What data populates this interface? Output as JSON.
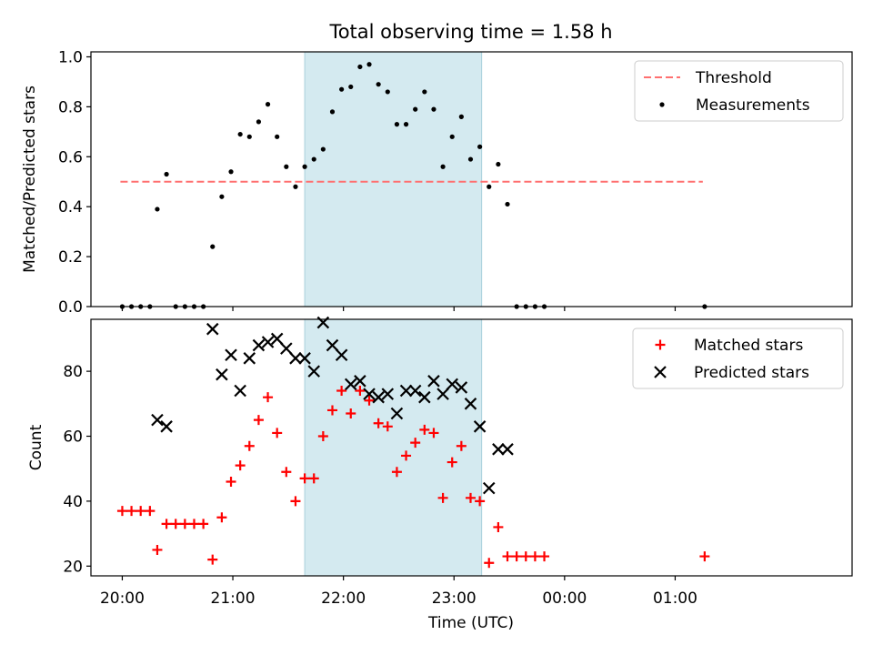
{
  "chart_data": {
    "type": "scatter",
    "title": "Total observing time = 1.58 h",
    "xlabel": "Time (UTC)",
    "x_tick_labels": [
      "20:00",
      "21:00",
      "22:00",
      "23:00",
      "00:00",
      "01:00"
    ],
    "observing_window": [
      "21:39",
      "23:15"
    ],
    "colors": {
      "window": "#d4eaf0",
      "threshold": "#ff7070",
      "measurements": "#000000",
      "matched": "#ff0000",
      "predicted": "#000000"
    },
    "panels": [
      {
        "ylabel": "Matched/Predicted stars",
        "ylim": [
          0,
          1.02
        ],
        "y_ticks": [
          "0.0",
          "0.2",
          "0.4",
          "0.6",
          "0.8",
          "1.0"
        ],
        "legend": {
          "placement": "upper right",
          "entries": [
            "Threshold",
            "Measurements"
          ]
        },
        "series": [
          {
            "name": "Threshold",
            "style": "dashed-line",
            "x": [
              "19:59",
              "23:59",
              "01:15"
            ],
            "y": [
              0.5,
              0.5,
              0.5
            ]
          },
          {
            "name": "Measurements",
            "style": "dot",
            "x": [
              "20:00",
              "20:05",
              "20:10",
              "20:15",
              "20:19",
              "20:24",
              "20:29",
              "20:34",
              "20:39",
              "20:44",
              "20:49",
              "20:54",
              "20:59",
              "21:04",
              "21:09",
              "21:14",
              "21:19",
              "21:24",
              "21:29",
              "21:34",
              "21:39",
              "21:44",
              "21:49",
              "21:54",
              "21:59",
              "22:04",
              "22:09",
              "22:14",
              "22:19",
              "22:24",
              "22:29",
              "22:34",
              "22:39",
              "22:44",
              "22:49",
              "22:54",
              "22:59",
              "23:04",
              "23:09",
              "23:14",
              "23:19",
              "23:24",
              "23:29",
              "23:34",
              "23:39",
              "23:44",
              "23:49",
              "01:16"
            ],
            "y": [
              0,
              0,
              0,
              0,
              0.39,
              0.53,
              0,
              0,
              0,
              0,
              0.24,
              0.44,
              0.54,
              0.69,
              0.68,
              0.74,
              0.81,
              0.68,
              0.56,
              0.48,
              0.56,
              0.59,
              0.63,
              0.78,
              0.87,
              0.88,
              0.96,
              0.97,
              0.89,
              0.86,
              0.73,
              0.73,
              0.79,
              0.86,
              0.79,
              0.56,
              0.68,
              0.76,
              0.59,
              0.64,
              0.48,
              0.57,
              0.41,
              0,
              0,
              0,
              0,
              0
            ]
          }
        ]
      },
      {
        "ylabel": "Count",
        "ylim": [
          17,
          96
        ],
        "y_ticks": [
          "20",
          "40",
          "60",
          "80"
        ],
        "legend": {
          "placement": "upper right",
          "entries": [
            "Matched stars",
            "Predicted stars"
          ]
        },
        "series": [
          {
            "name": "Matched stars",
            "style": "plus",
            "x": [
              "20:00",
              "20:05",
              "20:10",
              "20:15",
              "20:19",
              "20:24",
              "20:29",
              "20:34",
              "20:39",
              "20:44",
              "20:49",
              "20:54",
              "20:59",
              "21:04",
              "21:09",
              "21:14",
              "21:19",
              "21:24",
              "21:29",
              "21:34",
              "21:39",
              "21:44",
              "21:49",
              "21:54",
              "21:59",
              "22:04",
              "22:09",
              "22:14",
              "22:19",
              "22:24",
              "22:29",
              "22:34",
              "22:39",
              "22:44",
              "22:49",
              "22:54",
              "22:59",
              "23:04",
              "23:09",
              "23:14",
              "23:19",
              "23:24",
              "23:29",
              "23:34",
              "23:39",
              "23:44",
              "23:49",
              "01:16"
            ],
            "y": [
              37,
              37,
              37,
              37,
              25,
              33,
              33,
              33,
              33,
              33,
              22,
              35,
              46,
              51,
              57,
              65,
              72,
              61,
              49,
              40,
              47,
              47,
              60,
              68,
              74,
              67,
              74,
              71,
              64,
              63,
              49,
              54,
              58,
              62,
              61,
              41,
              52,
              57,
              41,
              40,
              21,
              32,
              23,
              23,
              23,
              23,
              23,
              23
            ]
          },
          {
            "name": "Predicted stars",
            "style": "x",
            "x": [
              "20:19",
              "20:24",
              "20:49",
              "20:54",
              "20:59",
              "21:04",
              "21:09",
              "21:14",
              "21:19",
              "21:24",
              "21:29",
              "21:34",
              "21:39",
              "21:44",
              "21:49",
              "21:54",
              "21:59",
              "22:04",
              "22:09",
              "22:14",
              "22:19",
              "22:24",
              "22:29",
              "22:34",
              "22:39",
              "22:44",
              "22:49",
              "22:54",
              "22:59",
              "23:04",
              "23:09",
              "23:14",
              "23:19",
              "23:24",
              "23:29"
            ],
            "y": [
              65,
              63,
              93,
              79,
              85,
              74,
              84,
              88,
              89,
              90,
              87,
              84,
              84,
              80,
              95,
              88,
              85,
              76,
              77,
              73,
              72,
              73,
              67,
              74,
              74,
              72,
              77,
              73,
              76,
              75,
              70,
              63,
              44,
              56,
              56
            ]
          }
        ]
      }
    ]
  }
}
